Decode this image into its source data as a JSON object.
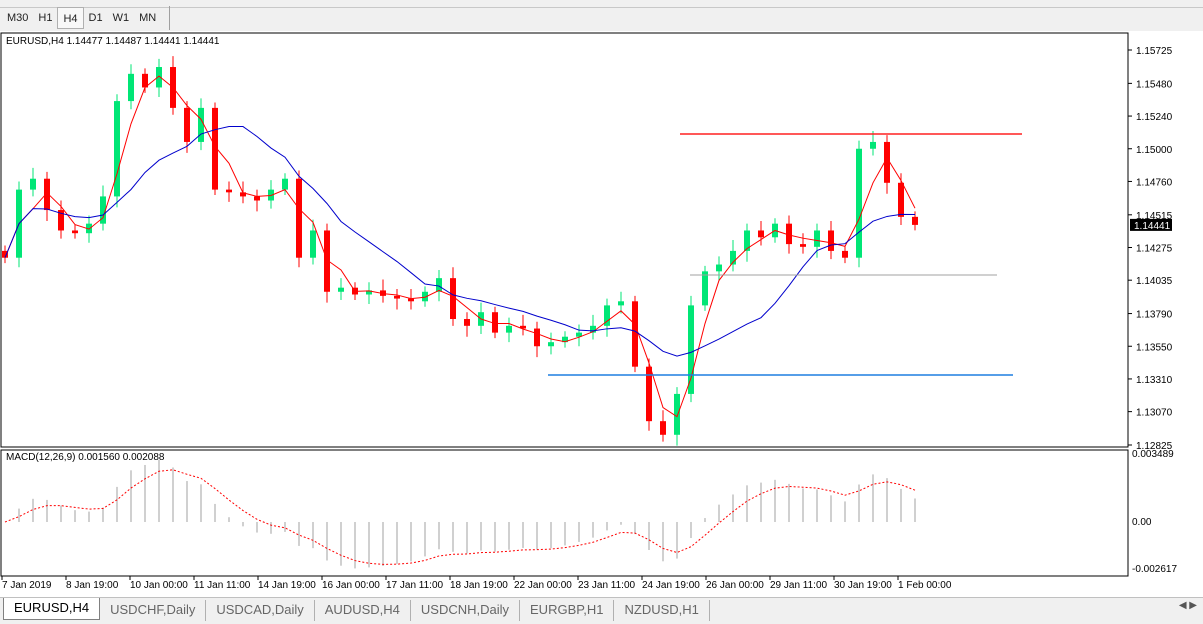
{
  "timeframes": [
    {
      "label": "M30"
    },
    {
      "label": "H1"
    },
    {
      "label": "H4",
      "active": true
    },
    {
      "label": "D1"
    },
    {
      "label": "W1"
    },
    {
      "label": "MN"
    }
  ],
  "chart": {
    "symbol_info": "EURUSD,H4  1.14477 1.14487 1.14441 1.14441",
    "current_price": "1.14441",
    "price_ticks": [
      "1.15725",
      "1.15480",
      "1.15240",
      "1.15000",
      "1.14760",
      "1.14515",
      "1.14275",
      "1.14035",
      "1.13790",
      "1.13550",
      "1.13310",
      "1.13070",
      "1.12825"
    ],
    "time_ticks": [
      "7 Jan 2019",
      "8 Jan 19:00",
      "10 Jan 00:00",
      "11 Jan 11:00",
      "14 Jan 19:00",
      "16 Jan 00:00",
      "17 Jan 11:00",
      "18 Jan 19:00",
      "22 Jan 00:00",
      "23 Jan 11:00",
      "24 Jan 19:00",
      "26 Jan 00:00",
      "29 Jan 11:00",
      "30 Jan 19:00",
      "1 Feb 00:00"
    ],
    "closes": [
      1.142,
      1.147,
      1.1478,
      1.1455,
      1.144,
      1.1438,
      1.1445,
      1.1465,
      1.1535,
      1.1555,
      1.1545,
      1.156,
      1.153,
      1.1505,
      1.153,
      1.147,
      1.1468,
      1.1465,
      1.1462,
      1.147,
      1.1478,
      1.142,
      1.144,
      1.1395,
      1.1398,
      1.1393,
      1.1396,
      1.1392,
      1.139,
      1.1388,
      1.1395,
      1.1405,
      1.1375,
      1.137,
      1.138,
      1.1365,
      1.137,
      1.1368,
      1.1355,
      1.1358,
      1.1362,
      1.1365,
      1.137,
      1.1385,
      1.1388,
      1.134,
      1.13,
      1.129,
      1.132,
      1.1385,
      1.141,
      1.1415,
      1.1425,
      1.144,
      1.1435,
      1.1445,
      1.143,
      1.1428,
      1.144,
      1.1425,
      1.142,
      1.15,
      1.1505,
      1.1475,
      1.145,
      1.14441
    ],
    "levels": [
      {
        "price": 1.15108,
        "color": "#ff2020"
      },
      {
        "price": 1.14073,
        "color": "#a0a0a0"
      },
      {
        "price": 1.13339,
        "color": "#1e7fe0"
      }
    ],
    "colors": {
      "bull": "#00e676",
      "bear": "#ff0000",
      "fast_ma": "#ff0000",
      "slow_ma": "#0000cc",
      "macd_hist": "#c0c0c0",
      "macd_signal": "#ff0000"
    },
    "macd": {
      "label": "MACD(12,26,9) 0.001560 0.002088",
      "ticks": [
        "0.003489",
        "0.00",
        "-0.002617"
      ]
    }
  },
  "tabs": [
    {
      "label": "EURUSD,H4",
      "active": true
    },
    {
      "label": "USDCHF,Daily"
    },
    {
      "label": "USDCAD,Daily"
    },
    {
      "label": "AUDUSD,H4"
    },
    {
      "label": "USDCNH,Daily"
    },
    {
      "label": "EURGBP,H1"
    },
    {
      "label": "NZDUSD,H1"
    }
  ]
}
